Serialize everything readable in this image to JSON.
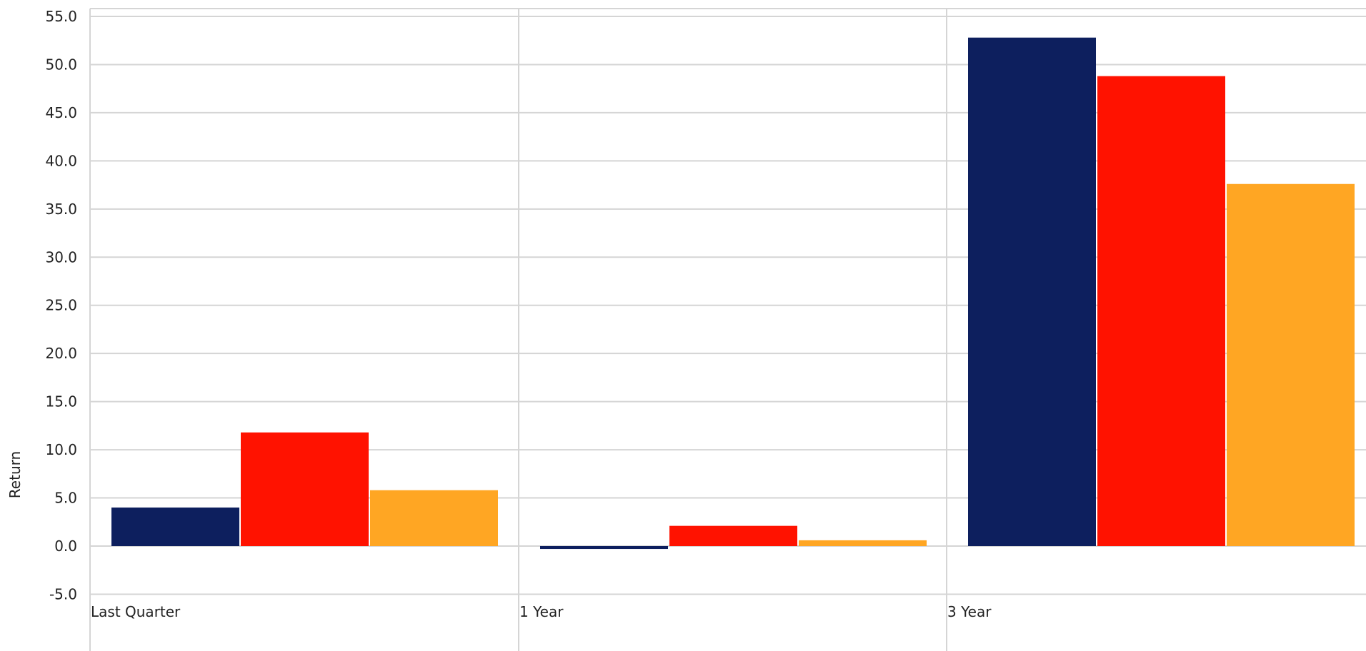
{
  "chart_data": {
    "type": "bar",
    "title": "",
    "xlabel": "",
    "ylabel": "Return",
    "categories": [
      "Last Quarter",
      "1 Year",
      "3 Year"
    ],
    "series": [
      {
        "values": [
          4.0,
          -0.3,
          52.8
        ],
        "color": "#0d1f5e"
      },
      {
        "values": [
          11.8,
          2.1,
          48.8
        ],
        "color": "#ff1200"
      },
      {
        "values": [
          5.8,
          0.6,
          37.6
        ],
        "color": "#ffa623"
      }
    ],
    "ylim": [
      -5,
      55
    ],
    "yticks": [
      55,
      50,
      45,
      40,
      35,
      30,
      25,
      20,
      15,
      10,
      5,
      0,
      -5
    ],
    "ytick_labels": [
      "55.0",
      "50.0",
      "45.0",
      "40.0",
      "35.0",
      "30.0",
      "25.0",
      "20.0",
      "15.0",
      "10.0",
      "5.0",
      "0.0",
      "-5.0"
    ],
    "grid": true,
    "legend": "none",
    "colors": {
      "grid": "#d5d5d5",
      "text": "#222222"
    }
  }
}
